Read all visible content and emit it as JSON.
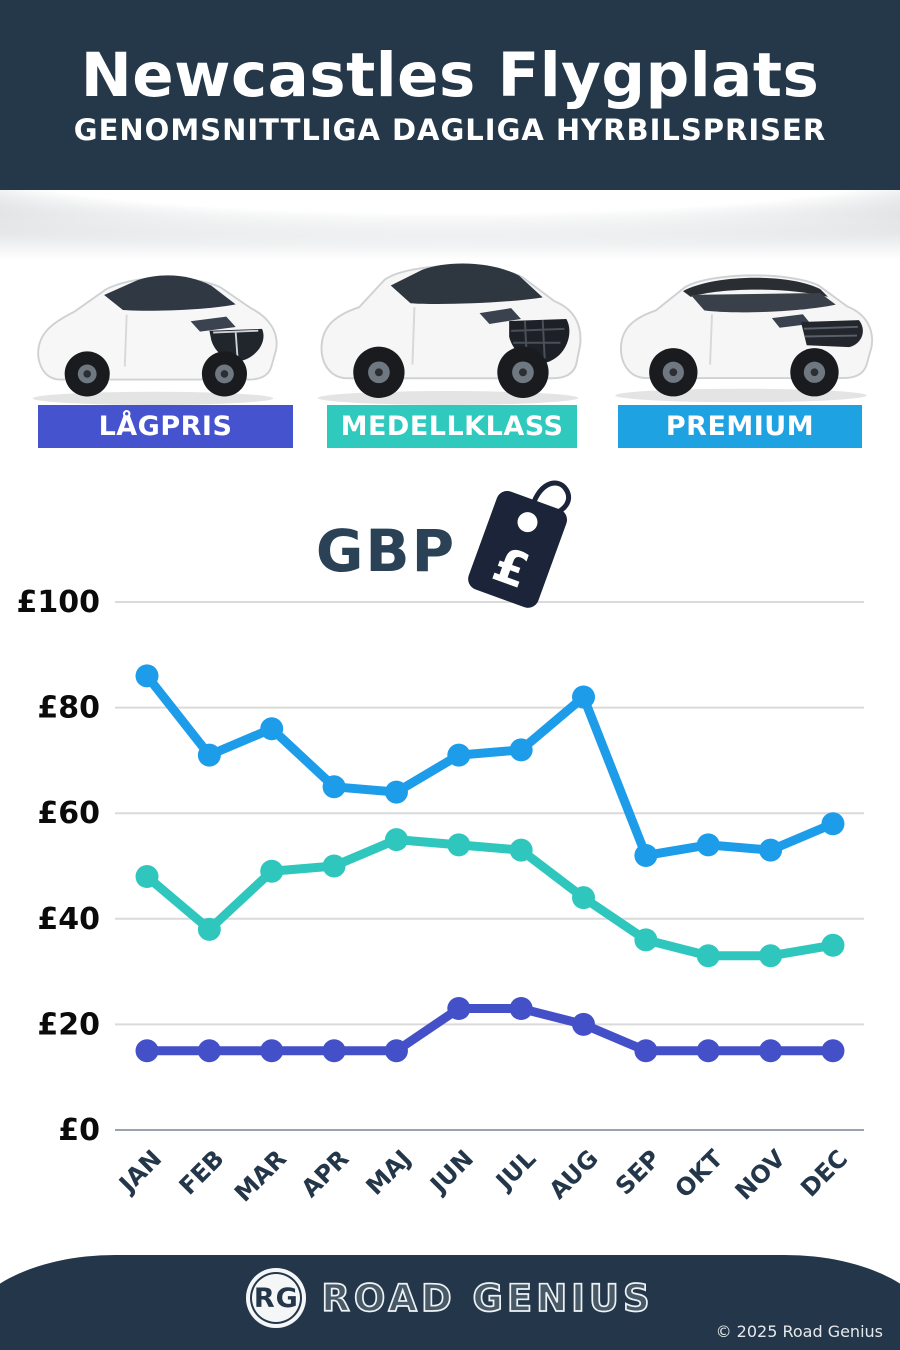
{
  "header": {
    "title": "Newcastles Flygplats",
    "subtitle": "GENOMSNITTLIGA DAGLIGA HYRBILSPRISER"
  },
  "vehicle_classes": [
    {
      "label": "LÅGPRIS",
      "badge_color": "#4553cf",
      "car": "compact-hatchback"
    },
    {
      "label": "MEDELLKLASS",
      "badge_color": "#2fc9be",
      "car": "midsize-suv"
    },
    {
      "label": "PREMIUM",
      "badge_color": "#1ea2e2",
      "car": "premium-suv"
    }
  ],
  "currency": {
    "label": "GBP",
    "symbol": "£"
  },
  "chart_data": {
    "type": "line",
    "categories": [
      "JAN",
      "FEB",
      "MAR",
      "APR",
      "MAJ",
      "JUN",
      "JUL",
      "AUG",
      "SEP",
      "OKT",
      "NOV",
      "DEC"
    ],
    "series": [
      {
        "name": "PREMIUM",
        "color": "#1d9ce9",
        "values": [
          86,
          71,
          76,
          65,
          64,
          71,
          72,
          82,
          52,
          54,
          53,
          58
        ]
      },
      {
        "name": "MEDELLKLASS",
        "color": "#2fc7bd",
        "values": [
          48,
          38,
          49,
          50,
          55,
          54,
          53,
          44,
          36,
          33,
          33,
          35
        ]
      },
      {
        "name": "LÅGPRIS",
        "color": "#4450c8",
        "values": [
          15,
          15,
          15,
          15,
          15,
          23,
          23,
          20,
          15,
          15,
          15,
          15
        ]
      }
    ],
    "ylabel_prefix": "£",
    "yticks": [
      0,
      20,
      40,
      60,
      80,
      100
    ],
    "ylim": [
      0,
      100
    ],
    "grid": true,
    "legend_position": "none",
    "xtick_rotation": -45
  },
  "footer": {
    "logo_initials": "RG",
    "brand": "ROAD GENIUS",
    "copyright": "© 2025 Road Genius"
  }
}
